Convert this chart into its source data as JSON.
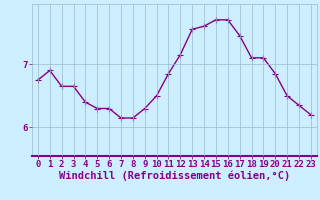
{
  "x": [
    0,
    1,
    2,
    3,
    4,
    5,
    6,
    7,
    8,
    9,
    10,
    11,
    12,
    13,
    14,
    15,
    16,
    17,
    18,
    19,
    20,
    21,
    22,
    23
  ],
  "y": [
    6.75,
    6.9,
    6.65,
    6.65,
    6.4,
    6.3,
    6.3,
    6.15,
    6.15,
    6.3,
    6.5,
    6.85,
    7.15,
    7.55,
    7.6,
    7.7,
    7.7,
    7.45,
    7.1,
    7.1,
    6.85,
    6.5,
    6.35,
    6.2
  ],
  "line_color": "#880088",
  "marker": "+",
  "marker_size": 4,
  "bg_color": "#cceeff",
  "grid_color": "#99bbcc",
  "xlabel": "Windchill (Refroidissement éolien,°C)",
  "yticks": [
    6,
    7
  ],
  "ylim": [
    5.55,
    7.95
  ],
  "xlim": [
    -0.5,
    23.5
  ],
  "xticks": [
    0,
    1,
    2,
    3,
    4,
    5,
    6,
    7,
    8,
    9,
    10,
    11,
    12,
    13,
    14,
    15,
    16,
    17,
    18,
    19,
    20,
    21,
    22,
    23
  ],
  "tick_fontsize": 6.5,
  "xlabel_fontsize": 7.5,
  "line_width": 1.0,
  "spine_color": "#880088"
}
